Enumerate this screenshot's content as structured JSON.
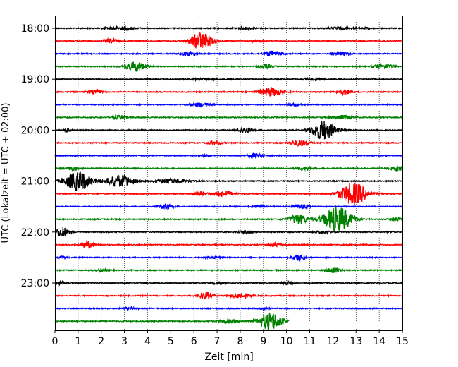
{
  "chart_data": {
    "type": "line",
    "title": "",
    "xlabel": "Zeit  [min]",
    "ylabel": "UTC (Lokalzeit = UTC + 02:00)",
    "xlim": [
      0,
      15
    ],
    "x_ticks": [
      0,
      1,
      2,
      3,
      4,
      5,
      6,
      7,
      8,
      9,
      10,
      11,
      12,
      13,
      14,
      15
    ],
    "y_tick_labels": [
      "18:00",
      "19:00",
      "20:00",
      "21:00",
      "22:00",
      "23:00"
    ],
    "grid": "vertical dotted lines at every minute",
    "legend": "none",
    "row_interval_min": 15,
    "colors": [
      "#000000",
      "#ff0000",
      "#0000ff",
      "#008000"
    ],
    "rows": [
      {
        "start": "18:00",
        "color": "#000000",
        "events": [
          [
            2.8,
            0.15,
            0.6
          ],
          [
            8.2,
            0.1,
            0.4
          ],
          [
            12.3,
            0.1,
            0.5
          ],
          [
            13.4,
            0.08,
            0.3
          ]
        ]
      },
      {
        "start": "18:15",
        "color": "#ff0000",
        "events": [
          [
            6.3,
            0.9,
            0.45
          ],
          [
            2.4,
            0.2,
            0.3
          ],
          [
            8.7,
            0.1,
            0.3
          ]
        ]
      },
      {
        "start": "18:30",
        "color": "#0000ff",
        "events": [
          [
            5.8,
            0.2,
            0.4
          ],
          [
            9.4,
            0.25,
            0.4
          ],
          [
            12.4,
            0.15,
            0.3
          ]
        ]
      },
      {
        "start": "18:45",
        "color": "#008000",
        "events": [
          [
            3.5,
            0.5,
            0.4
          ],
          [
            9.1,
            0.2,
            0.3
          ],
          [
            14.2,
            0.25,
            0.4
          ]
        ]
      },
      {
        "start": "19:00",
        "color": "#000000",
        "events": [
          [
            6.4,
            0.1,
            0.5
          ],
          [
            11.0,
            0.1,
            0.4
          ]
        ]
      },
      {
        "start": "19:15",
        "color": "#ff0000",
        "events": [
          [
            9.3,
            0.45,
            0.45
          ],
          [
            1.7,
            0.2,
            0.3
          ],
          [
            12.5,
            0.25,
            0.3
          ]
        ]
      },
      {
        "start": "19:30",
        "color": "#0000ff",
        "events": [
          [
            6.3,
            0.2,
            0.4
          ],
          [
            10.4,
            0.1,
            0.3
          ]
        ]
      },
      {
        "start": "19:45",
        "color": "#008000",
        "events": [
          [
            2.8,
            0.2,
            0.3
          ],
          [
            12.4,
            0.2,
            0.4
          ]
        ]
      },
      {
        "start": "20:00",
        "color": "#000000",
        "events": [
          [
            11.6,
            1.0,
            0.5
          ],
          [
            8.2,
            0.3,
            0.3
          ],
          [
            0.5,
            0.2,
            0.15
          ]
        ]
      },
      {
        "start": "20:15",
        "color": "#ff0000",
        "events": [
          [
            10.6,
            0.3,
            0.4
          ],
          [
            6.9,
            0.2,
            0.3
          ]
        ]
      },
      {
        "start": "20:30",
        "color": "#0000ff",
        "events": [
          [
            8.7,
            0.25,
            0.3
          ],
          [
            6.5,
            0.12,
            0.2
          ]
        ]
      },
      {
        "start": "20:45",
        "color": "#008000",
        "events": [
          [
            0.8,
            0.2,
            0.3
          ],
          [
            10.7,
            0.15,
            0.4
          ],
          [
            14.8,
            0.25,
            0.3
          ]
        ]
      },
      {
        "start": "21:00",
        "color": "#000000",
        "events": [
          [
            1.0,
            1.0,
            0.55
          ],
          [
            2.8,
            0.6,
            0.6
          ],
          [
            5.0,
            0.2,
            0.7
          ]
        ]
      },
      {
        "start": "21:15",
        "color": "#ff0000",
        "events": [
          [
            12.9,
            1.1,
            0.6
          ],
          [
            7.3,
            0.3,
            0.4
          ],
          [
            6.3,
            0.2,
            0.3
          ]
        ]
      },
      {
        "start": "21:30",
        "color": "#0000ff",
        "events": [
          [
            4.8,
            0.25,
            0.3
          ],
          [
            10.6,
            0.2,
            0.3
          ],
          [
            8.8,
            0.1,
            0.3
          ]
        ]
      },
      {
        "start": "21:45",
        "color": "#008000",
        "events": [
          [
            12.2,
            1.3,
            0.6
          ],
          [
            10.5,
            0.5,
            0.4
          ],
          [
            14.8,
            0.2,
            0.3
          ]
        ]
      },
      {
        "start": "22:00",
        "color": "#000000",
        "events": [
          [
            0.3,
            0.5,
            0.3
          ],
          [
            8.3,
            0.15,
            0.3
          ],
          [
            11.6,
            0.15,
            0.3
          ]
        ]
      },
      {
        "start": "22:15",
        "color": "#ff0000",
        "events": [
          [
            1.4,
            0.35,
            0.3
          ],
          [
            9.6,
            0.2,
            0.3
          ]
        ]
      },
      {
        "start": "22:30",
        "color": "#0000ff",
        "events": [
          [
            10.5,
            0.3,
            0.3
          ],
          [
            0.4,
            0.15,
            0.2
          ],
          [
            6.8,
            0.1,
            0.3
          ]
        ]
      },
      {
        "start": "22:45",
        "color": "#008000",
        "events": [
          [
            12.0,
            0.3,
            0.3
          ],
          [
            2.0,
            0.1,
            0.3
          ]
        ]
      },
      {
        "start": "23:00",
        "color": "#000000",
        "events": [
          [
            10.1,
            0.2,
            0.2
          ],
          [
            0.2,
            0.15,
            0.2
          ],
          [
            7.0,
            0.1,
            0.3
          ]
        ]
      },
      {
        "start": "23:15",
        "color": "#ff0000",
        "events": [
          [
            6.5,
            0.35,
            0.3
          ],
          [
            8.0,
            0.25,
            0.4
          ]
        ]
      },
      {
        "start": "23:30",
        "color": "#0000ff",
        "events": [
          [
            3.2,
            0.1,
            0.3
          ],
          [
            9.0,
            0.08,
            0.3
          ]
        ]
      },
      {
        "start": "23:45",
        "color": "#008000",
        "events": [
          [
            9.3,
            0.9,
            0.5
          ],
          [
            7.5,
            0.15,
            0.4
          ]
        ]
      }
    ],
    "row_end_min": {
      "23:45": 10.1
    }
  }
}
